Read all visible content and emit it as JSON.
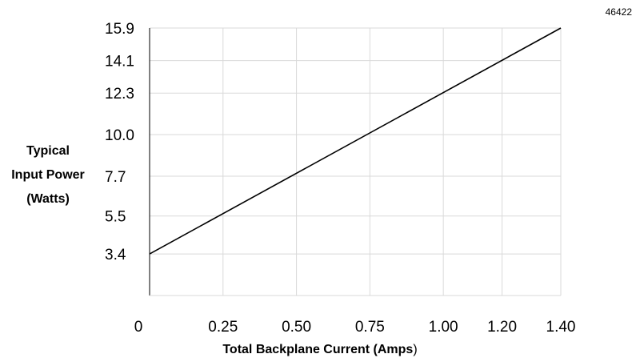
{
  "figure_code": "46422",
  "chart_data": {
    "type": "line",
    "ylabel_lines": [
      "Typical",
      "Input Power",
      "(Watts)"
    ],
    "xlabel_bold": "Total Backplane  Current  (Amps",
    "xlabel_tail": ")",
    "x_ticks": [
      {
        "value": 0,
        "label": "0"
      },
      {
        "value": 0.25,
        "label": "0.25"
      },
      {
        "value": 0.5,
        "label": "0.50"
      },
      {
        "value": 0.75,
        "label": "0.75"
      },
      {
        "value": 1.0,
        "label": "1.00"
      },
      {
        "value": 1.2,
        "label": "1.20"
      },
      {
        "value": 1.4,
        "label": "1.40"
      }
    ],
    "y_ticks": [
      {
        "value": 3.4,
        "label": "3.4"
      },
      {
        "value": 5.5,
        "label": "5.5"
      },
      {
        "value": 7.7,
        "label": "7.7"
      },
      {
        "value": 10.0,
        "label": "10.0"
      },
      {
        "value": 12.3,
        "label": "12.3"
      },
      {
        "value": 14.1,
        "label": "14.1"
      },
      {
        "value": 15.9,
        "label": "15.9"
      }
    ],
    "xlim": [
      0,
      1.4
    ],
    "ylim": [
      1.1,
      15.9
    ],
    "grid": true,
    "series": [
      {
        "x": [
          0,
          1.4
        ],
        "y": [
          3.4,
          15.9
        ]
      }
    ]
  }
}
